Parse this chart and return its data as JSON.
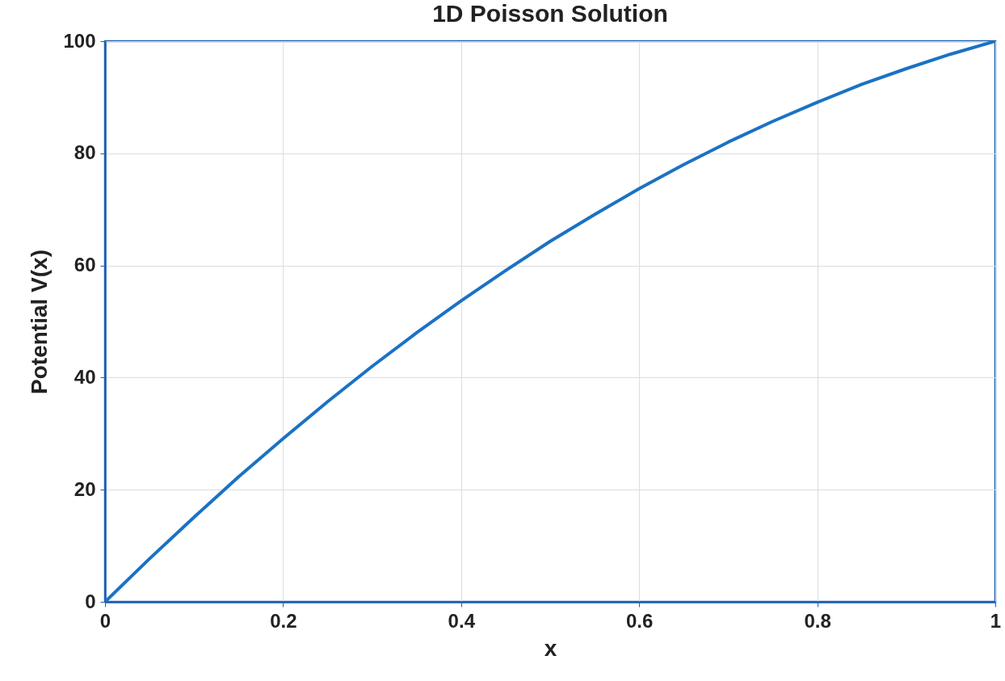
{
  "chart_data": {
    "type": "line",
    "title": "1D Poisson Solution",
    "xlabel": "x",
    "ylabel": "Potential V(x)",
    "x": [
      0,
      0.05,
      0.1,
      0.15,
      0.2,
      0.25,
      0.3,
      0.35,
      0.4,
      0.45,
      0.5,
      0.55,
      0.6,
      0.65,
      0.7,
      0.75,
      0.8,
      0.85,
      0.9,
      0.95,
      1
    ],
    "series": [
      {
        "color": "#1a72c4",
        "values": [
          0,
          7.7,
          15.1,
          22.3,
          29.1,
          35.7,
          42.0,
          48.0,
          53.7,
          59.1,
          64.3,
          69.1,
          73.7,
          78.0,
          82.0,
          85.7,
          89.1,
          92.3,
          95.1,
          97.7,
          100
        ]
      }
    ],
    "xlim": [
      0,
      1
    ],
    "ylim": [
      0,
      100
    ],
    "xticks": [
      0,
      0.2,
      0.4,
      0.6,
      0.8,
      1
    ],
    "yticks": [
      0,
      20,
      40,
      60,
      80,
      100
    ],
    "grid": true,
    "marker": "none",
    "line_style": "solid",
    "legend": false
  }
}
